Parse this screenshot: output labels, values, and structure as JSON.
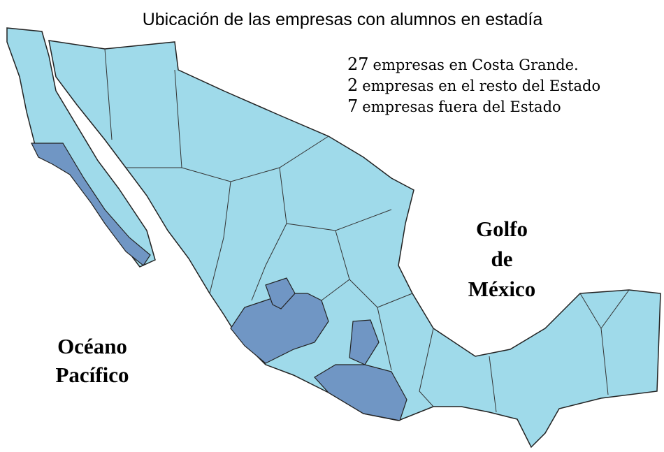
{
  "title": "Ubicación de las empresas con alumnos en estadía",
  "stats": [
    {
      "count": 27,
      "text": "empresas en Costa Grande."
    },
    {
      "count": 2,
      "text": "empresas en el resto del Estado"
    },
    {
      "count": 7,
      "text": "empresas fuera del Estado"
    }
  ],
  "labels": {
    "gulf": [
      "Golfo",
      "de",
      "México"
    ],
    "ocean": [
      "Océano",
      "Pacífico"
    ]
  }
}
